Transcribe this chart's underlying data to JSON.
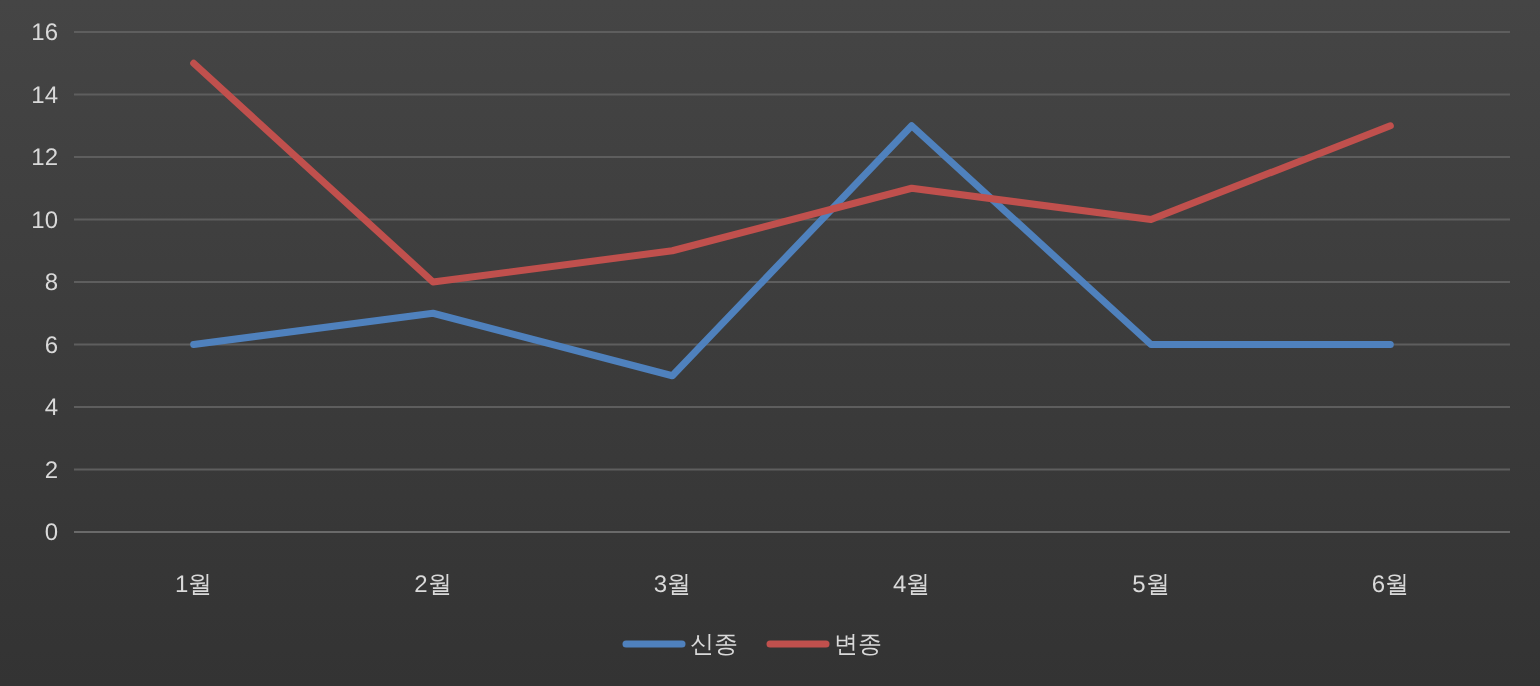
{
  "chart_data": {
    "type": "line",
    "categories": [
      "1월",
      "2월",
      "3월",
      "4월",
      "5월",
      "6월"
    ],
    "series": [
      {
        "name": "신종",
        "color": "#4f81bd",
        "values": [
          6,
          7,
          5,
          13,
          6,
          6
        ]
      },
      {
        "name": "변종",
        "color": "#c0504d",
        "values": [
          15,
          8,
          9,
          11,
          10,
          13
        ]
      }
    ],
    "ylim": [
      0,
      16
    ],
    "yticks": [
      0,
      2,
      4,
      6,
      8,
      10,
      12,
      14,
      16
    ],
    "grid": "y",
    "legend": "bottom"
  }
}
